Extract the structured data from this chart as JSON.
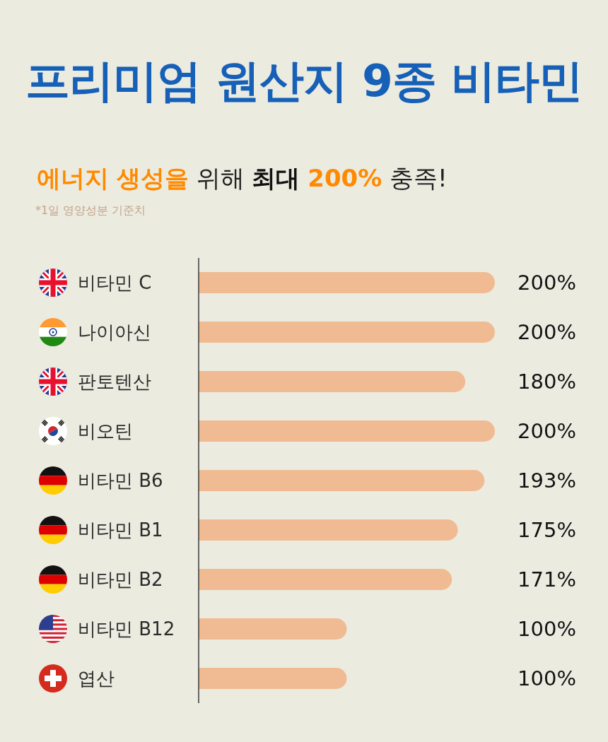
{
  "chart_data": {
    "type": "bar",
    "orientation": "horizontal",
    "title": "프리미엄 원산지 9종 비타민",
    "subtitle": "에너지 생성을 위해 최대 200% 충족!",
    "annotations": [
      "*1일 영양성분 기준치"
    ],
    "categories": [
      "비타민 C",
      "나이아신",
      "판토텐산",
      "비오틴",
      "비타민 B6",
      "비타민 B1",
      "비타민 B2",
      "비타민 B12",
      "엽산"
    ],
    "values": [
      200,
      200,
      180,
      200,
      193,
      175,
      171,
      100,
      100
    ],
    "value_labels": [
      "200%",
      "200%",
      "180%",
      "200%",
      "193%",
      "175%",
      "171%",
      "100%",
      "100%"
    ],
    "color": "#f0bb92"
  }
}
